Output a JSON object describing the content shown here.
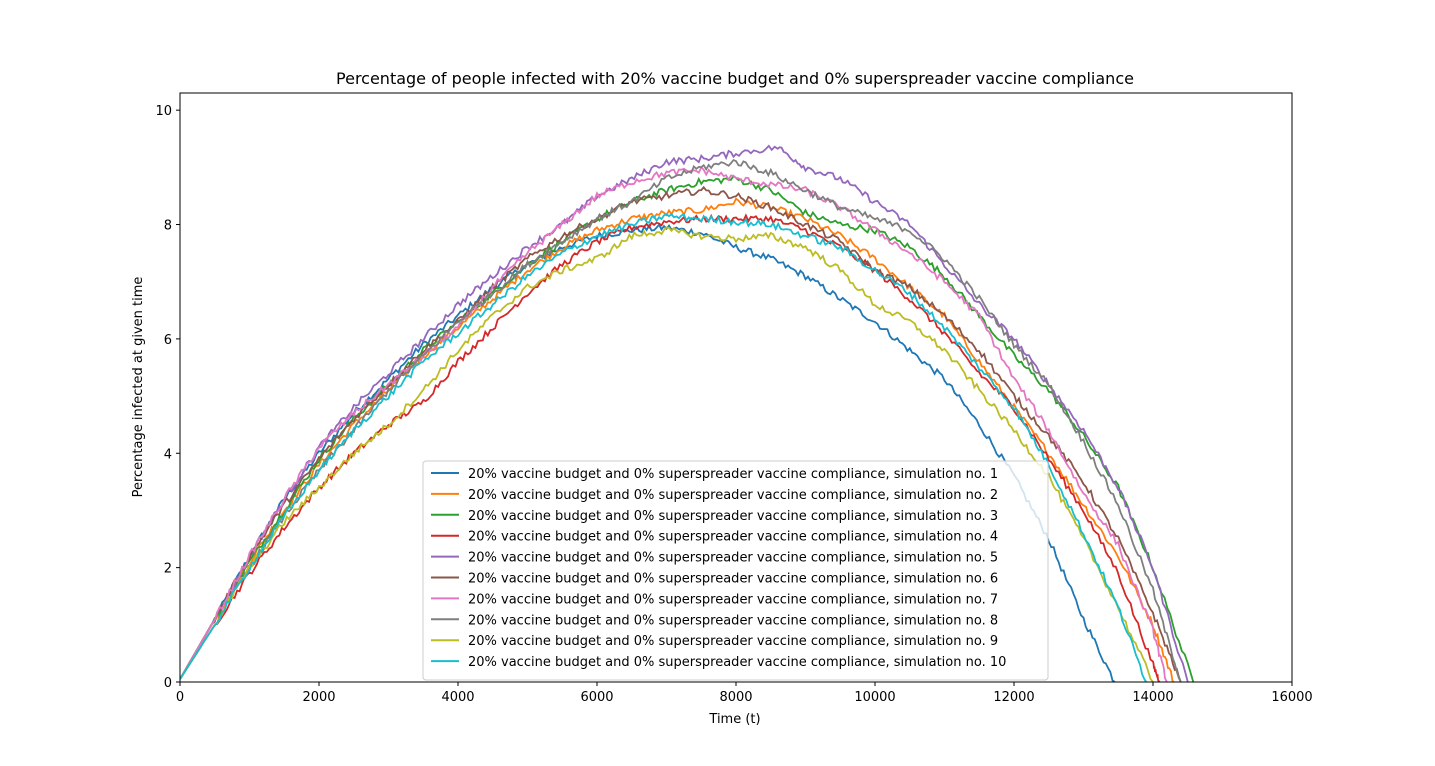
{
  "chart_data": {
    "type": "line",
    "title": "Percentage of people infected with 20% vaccine budget and 0% superspreader vaccine compliance",
    "xlabel": "Time (t)",
    "ylabel": "Percentage infected at given time",
    "xlim": [
      0,
      16000
    ],
    "ylim": [
      0,
      10.3
    ],
    "xticks": [
      0,
      2000,
      4000,
      6000,
      8000,
      10000,
      12000,
      14000,
      16000
    ],
    "yticks": [
      0,
      2,
      4,
      6,
      8,
      10
    ],
    "grid": false,
    "legend_position": "lower-center",
    "series": [
      {
        "name": "20% vaccine budget and 0% superspreader vaccine compliance, simulation no. 1",
        "color": "#1f77b4",
        "x": [
          0,
          500,
          1000,
          1500,
          2000,
          2500,
          3000,
          3500,
          4000,
          4500,
          5000,
          5500,
          6000,
          6500,
          7000,
          7500,
          8000,
          8500,
          9000,
          9500,
          10000,
          10500,
          11000,
          11500,
          12000,
          12500,
          13000,
          13450
        ],
        "y": [
          0.05,
          1.1,
          2.2,
          3.2,
          4.0,
          4.7,
          5.3,
          5.9,
          6.4,
          6.9,
          7.3,
          7.6,
          7.8,
          7.9,
          7.95,
          7.85,
          7.6,
          7.4,
          7.1,
          6.7,
          6.3,
          5.8,
          5.3,
          4.5,
          3.6,
          2.5,
          1.1,
          0.0
        ]
      },
      {
        "name": "20% vaccine budget and 0% superspreader vaccine compliance, simulation no. 2",
        "color": "#ff7f0e",
        "x": [
          0,
          500,
          1000,
          1500,
          2000,
          2500,
          3000,
          3500,
          4000,
          4500,
          5000,
          5500,
          6000,
          6500,
          7000,
          7500,
          8000,
          8500,
          9000,
          9500,
          10000,
          10500,
          11000,
          11500,
          12000,
          12500,
          13000,
          13500,
          14000,
          14300
        ],
        "y": [
          0.05,
          1.1,
          2.1,
          3.0,
          3.8,
          4.5,
          5.1,
          5.7,
          6.2,
          6.7,
          7.2,
          7.6,
          7.9,
          8.1,
          8.2,
          8.25,
          8.4,
          8.3,
          8.1,
          7.8,
          7.4,
          6.9,
          6.4,
          5.6,
          4.8,
          4.0,
          3.1,
          2.2,
          1.0,
          0.0
        ]
      },
      {
        "name": "20% vaccine budget and 0% superspreader vaccine compliance, simulation no. 3",
        "color": "#2ca02c",
        "x": [
          0,
          500,
          1000,
          1500,
          2000,
          2500,
          3000,
          3500,
          4000,
          4500,
          5000,
          5500,
          6000,
          6500,
          7000,
          7500,
          8000,
          8500,
          9000,
          9500,
          10000,
          10500,
          11000,
          11500,
          12000,
          12500,
          13000,
          13500,
          14000,
          14580
        ],
        "y": [
          0.05,
          1.1,
          2.1,
          3.0,
          3.9,
          4.6,
          5.2,
          5.8,
          6.3,
          6.8,
          7.3,
          7.7,
          8.1,
          8.4,
          8.6,
          8.75,
          8.8,
          8.6,
          8.2,
          8.0,
          7.9,
          7.6,
          7.1,
          6.4,
          5.7,
          5.1,
          4.3,
          3.4,
          2.0,
          0.0
        ]
      },
      {
        "name": "20% vaccine budget and 0% superspreader vaccine compliance, simulation no. 4",
        "color": "#d62728",
        "x": [
          0,
          500,
          1000,
          1500,
          2000,
          2500,
          3000,
          3500,
          4000,
          4500,
          5000,
          5500,
          6000,
          6500,
          7000,
          7500,
          8000,
          8500,
          9000,
          9500,
          10000,
          10500,
          11000,
          11500,
          12000,
          12500,
          13000,
          13500,
          14000,
          14100
        ],
        "y": [
          0.05,
          1.0,
          1.9,
          2.7,
          3.4,
          4.0,
          4.5,
          4.9,
          5.6,
          6.2,
          6.8,
          7.3,
          7.7,
          7.95,
          8.05,
          8.1,
          8.1,
          8.1,
          7.9,
          7.6,
          7.2,
          6.7,
          6.1,
          5.4,
          4.8,
          3.9,
          3.0,
          1.9,
          0.3,
          0.0
        ]
      },
      {
        "name": "20% vaccine budget and 0% superspreader vaccine compliance, simulation no. 5",
        "color": "#9467bd",
        "x": [
          0,
          500,
          1000,
          1500,
          2000,
          2500,
          3000,
          3500,
          4000,
          4500,
          5000,
          5500,
          6000,
          6500,
          7000,
          7500,
          8000,
          8600,
          9000,
          9500,
          10000,
          10500,
          11000,
          11500,
          12000,
          12500,
          13000,
          13500,
          14000,
          14500
        ],
        "y": [
          0.05,
          1.1,
          2.2,
          3.2,
          4.1,
          4.8,
          5.4,
          6.0,
          6.6,
          7.1,
          7.6,
          8.0,
          8.5,
          8.8,
          9.1,
          9.15,
          9.25,
          9.35,
          9.0,
          8.8,
          8.4,
          8.0,
          7.3,
          6.6,
          6.0,
          5.2,
          4.4,
          3.4,
          2.0,
          0.0
        ]
      },
      {
        "name": "20% vaccine budget and 0% superspreader vaccine compliance, simulation no. 6",
        "color": "#8c564b",
        "x": [
          0,
          500,
          1000,
          1500,
          2000,
          2500,
          3000,
          3500,
          4000,
          4500,
          5000,
          5500,
          6000,
          6500,
          7000,
          7500,
          8000,
          8500,
          9000,
          9500,
          10000,
          10500,
          11000,
          11500,
          12000,
          12500,
          13000,
          13500,
          14000,
          14400
        ],
        "y": [
          0.05,
          1.1,
          2.2,
          3.1,
          3.9,
          4.6,
          5.2,
          5.8,
          6.3,
          6.9,
          7.4,
          7.8,
          8.1,
          8.4,
          8.5,
          8.6,
          8.5,
          8.3,
          8.0,
          7.7,
          7.2,
          6.9,
          6.4,
          5.8,
          5.0,
          4.3,
          3.5,
          2.5,
          1.2,
          0.0
        ]
      },
      {
        "name": "20% vaccine budget and 0% superspreader vaccine compliance, simulation no. 7",
        "color": "#e377c2",
        "x": [
          0,
          500,
          1000,
          1500,
          2000,
          2500,
          3000,
          3500,
          4000,
          4500,
          5000,
          5500,
          6000,
          6500,
          7000,
          7500,
          8000,
          8500,
          9000,
          9500,
          10000,
          10500,
          11000,
          11500,
          12000,
          12500,
          13000,
          13500,
          14000,
          14200
        ],
        "y": [
          0.05,
          1.1,
          2.2,
          3.2,
          4.1,
          4.7,
          5.2,
          5.7,
          6.2,
          6.9,
          7.5,
          8.0,
          8.5,
          8.75,
          8.9,
          8.95,
          8.8,
          8.7,
          8.6,
          8.3,
          7.9,
          7.5,
          7.0,
          6.4,
          5.3,
          4.4,
          3.3,
          2.4,
          0.9,
          0.0
        ]
      },
      {
        "name": "20% vaccine budget and 0% superspreader vaccine compliance, simulation no. 8",
        "color": "#7f7f7f",
        "x": [
          0,
          500,
          1000,
          1500,
          2000,
          2500,
          3000,
          3500,
          4000,
          4500,
          5000,
          5500,
          6000,
          6500,
          7000,
          7500,
          8000,
          8500,
          9000,
          9500,
          10000,
          10500,
          11000,
          11500,
          12000,
          12500,
          13000,
          13500,
          14000,
          14400
        ],
        "y": [
          0.05,
          1.0,
          2.0,
          2.9,
          3.7,
          4.4,
          5.1,
          5.7,
          6.3,
          6.8,
          7.3,
          7.7,
          8.1,
          8.4,
          8.8,
          9.0,
          9.1,
          8.9,
          8.6,
          8.3,
          8.1,
          7.9,
          7.4,
          6.7,
          5.9,
          5.2,
          4.2,
          3.1,
          1.6,
          0.0
        ]
      },
      {
        "name": "20% vaccine budget and 0% superspreader vaccine compliance, simulation no. 9",
        "color": "#bcbd22",
        "x": [
          0,
          500,
          1000,
          1500,
          2000,
          2500,
          3000,
          3500,
          4000,
          4500,
          5000,
          5500,
          6000,
          6500,
          7000,
          7500,
          8000,
          8500,
          9000,
          9500,
          10000,
          10500,
          11000,
          11500,
          12000,
          12500,
          13000,
          13500,
          14000
        ],
        "y": [
          0.05,
          1.0,
          2.0,
          2.8,
          3.4,
          4.0,
          4.5,
          5.1,
          5.8,
          6.4,
          6.9,
          7.2,
          7.4,
          7.8,
          7.9,
          7.8,
          7.75,
          7.8,
          7.6,
          7.2,
          6.6,
          6.3,
          5.8,
          5.1,
          4.4,
          3.6,
          2.5,
          1.3,
          0.0
        ]
      },
      {
        "name": "20% vaccine budget and 0% superspreader vaccine compliance, simulation no. 10",
        "color": "#17becf",
        "x": [
          0,
          500,
          1000,
          1500,
          2000,
          2500,
          3000,
          3500,
          4000,
          4500,
          5000,
          5500,
          6000,
          6500,
          7000,
          7500,
          8000,
          8500,
          9000,
          9500,
          10000,
          10500,
          11000,
          11500,
          12000,
          12500,
          13000,
          13500,
          13900
        ],
        "y": [
          0.05,
          1.0,
          2.0,
          2.9,
          3.7,
          4.4,
          5.0,
          5.6,
          6.1,
          6.6,
          7.1,
          7.5,
          7.8,
          8.0,
          8.15,
          8.1,
          8.05,
          8.0,
          7.8,
          7.6,
          7.2,
          6.8,
          6.2,
          5.5,
          4.8,
          3.8,
          2.6,
          1.3,
          0.0
        ]
      }
    ]
  }
}
